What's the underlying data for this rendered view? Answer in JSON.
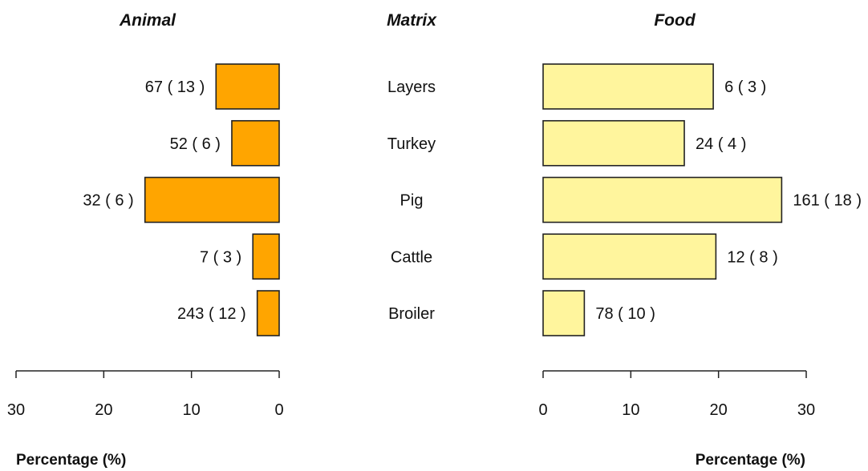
{
  "chart_data": {
    "type": "bar",
    "layout": "back-to-back horizontal bars",
    "matrix_title": "Matrix",
    "categories": [
      "Layers",
      "Turkey",
      "Pig",
      "Cattle",
      "Broiler"
    ],
    "series": [
      {
        "name": "Animal",
        "direction": "left",
        "color": "#FFA500",
        "values": [
          7.2,
          5.4,
          15.3,
          3.0,
          2.5
        ],
        "labels": [
          "67  ( 13 )",
          "52  ( 6 )",
          "32  ( 6 )",
          "7  ( 3 )",
          "243  ( 12 )"
        ]
      },
      {
        "name": "Food",
        "direction": "right",
        "color": "#FFF59D",
        "values": [
          19.4,
          16.1,
          27.2,
          19.7,
          4.7
        ],
        "labels": [
          "6  ( 3 )",
          "24  ( 4 )",
          "161  ( 18 )",
          "12  ( 8 )",
          "78  ( 10 )"
        ]
      }
    ],
    "xlim": [
      0,
      30
    ],
    "xticks": [
      0,
      10,
      20,
      30
    ],
    "xlabel": "Percentage (%)",
    "grid": false
  }
}
